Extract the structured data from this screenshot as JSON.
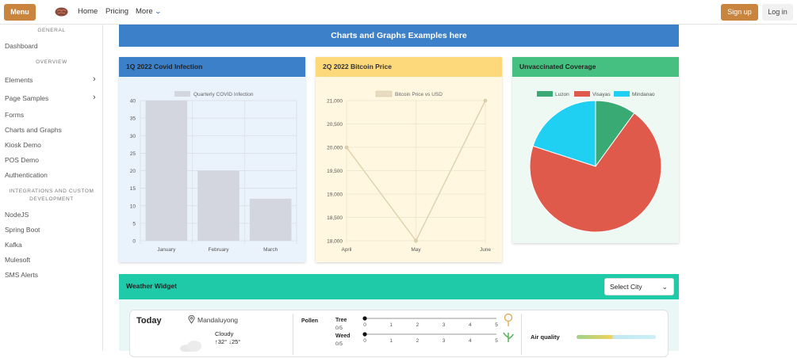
{
  "topbar": {
    "menu_label": "Menu",
    "nav": [
      "Home",
      "Pricing",
      "More"
    ],
    "signup_label": "Sign up",
    "login_label": "Log in"
  },
  "sidebar": {
    "general_heading": "GENERAL",
    "dashboard": "Dashboard",
    "overview_heading": "OVERVIEW",
    "elements": "Elements",
    "page_samples": "Page Samples",
    "forms": "Forms",
    "charts_graphs": "Charts and Graphs",
    "kiosk": "Kiosk Demo",
    "pos": "POS Demo",
    "auth": "Authentication",
    "integrations_heading_line1": "INTEGRATIONS AND CUSTOM",
    "integrations_heading_line2": "DEVELOPMENT",
    "nodejs": "NodeJS",
    "spring": "Spring Boot",
    "kafka": "Kafka",
    "mulesoft": "Mulesoft",
    "sms": "SMS Alerts"
  },
  "banner": "Charts and Graphs Examples here",
  "cards": {
    "covid_title": "1Q 2022 Covid Infection",
    "bitcoin_title": "2Q 2022 Bitcoin Price",
    "vaccine_title": "Unvaccinated Coverage"
  },
  "chart_data": [
    {
      "type": "bar",
      "title": "",
      "categories": [
        "January",
        "February",
        "March"
      ],
      "series": [
        {
          "name": "Quarterly COVID Infection",
          "values": [
            40,
            20,
            12
          ]
        }
      ],
      "ylim": [
        0,
        40
      ],
      "yticks": [
        0,
        5,
        10,
        15,
        20,
        25,
        30,
        35,
        40
      ],
      "color": "#d3d6df",
      "grid": true,
      "legend": "top"
    },
    {
      "type": "line",
      "title": "",
      "categories": [
        "April",
        "May",
        "June"
      ],
      "series": [
        {
          "name": "Bitcoin Price vs USD",
          "values": [
            20000,
            18000,
            21000
          ]
        }
      ],
      "ylim": [
        18000,
        21000
      ],
      "yticks": [
        "18,000",
        "18,500",
        "19,000",
        "19,500",
        "20,000",
        "20,500",
        "21,000"
      ],
      "color": "#e8dcc0",
      "grid": true,
      "legend": "top"
    },
    {
      "type": "pie",
      "title": "",
      "labels": [
        "Luzon",
        "Visayas",
        "Mindanao"
      ],
      "values": [
        10,
        70,
        20
      ],
      "colors": [
        "#3aaa74",
        "#e05a4b",
        "#1fd0f2"
      ],
      "legend": "top"
    }
  ],
  "weather": {
    "title": "Weather Widget",
    "select_label": "Select City",
    "today": "Today",
    "location": "Mandaluyong",
    "condition": "Cloudy",
    "high": "32°",
    "low": "25°",
    "pollen": "Pollen",
    "tree": "Tree",
    "tree_val": "0/5",
    "weed": "Weed",
    "weed_val": "0/5",
    "scale": [
      "0",
      "1",
      "2",
      "3",
      "4",
      "5"
    ],
    "air_quality": "Air quality",
    "aq_scale": [
      "0",
      "100",
      "200",
      "300",
      "400",
      "500"
    ]
  }
}
